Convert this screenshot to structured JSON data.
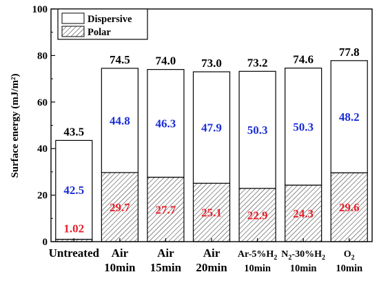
{
  "chart_data": {
    "type": "bar",
    "stacked": true,
    "ylabel": "Surface energy (mJ/m²)",
    "ylim": [
      0,
      100
    ],
    "yticks": [
      0,
      20,
      40,
      60,
      80,
      100
    ],
    "grid": false,
    "legend_placement": "top-left",
    "categories": [
      {
        "lines": [
          {
            "text": "Untreated"
          }
        ]
      },
      {
        "lines": [
          {
            "text": "Air"
          },
          {
            "text": "10min"
          }
        ]
      },
      {
        "lines": [
          {
            "text": "Air"
          },
          {
            "text": "15min"
          }
        ]
      },
      {
        "lines": [
          {
            "text": "Air"
          },
          {
            "text": "20min"
          }
        ]
      },
      {
        "lines": [
          {
            "text": "Ar-5%H",
            "sub": "2"
          },
          {
            "text": "10min"
          }
        ]
      },
      {
        "lines": [
          {
            "text": "N",
            "sub": "2",
            "after": "-30%H",
            "sub2": "2"
          },
          {
            "text": "10min"
          }
        ]
      },
      {
        "lines": [
          {
            "text": "O",
            "sub": "2"
          },
          {
            "text": "10min"
          }
        ]
      }
    ],
    "series": [
      {
        "name": "Polar",
        "values": [
          1.02,
          29.7,
          27.7,
          25.1,
          22.9,
          24.3,
          29.6
        ],
        "labels": [
          "1.02",
          "29.7",
          "27.7",
          "25.1",
          "22.9",
          "24.3",
          "29.6"
        ],
        "label_color": "#e8202a",
        "fill": "hatched"
      },
      {
        "name": "Dispersive",
        "values": [
          42.5,
          44.8,
          46.3,
          47.9,
          50.3,
          50.3,
          48.2
        ],
        "labels": [
          "42.5",
          "44.8",
          "46.3",
          "47.9",
          "50.3",
          "50.3",
          "48.2"
        ],
        "label_color": "#1a2ed6",
        "fill": "white"
      }
    ],
    "totals": [
      43.5,
      74.5,
      74.0,
      73.0,
      73.2,
      74.6,
      77.8
    ],
    "total_labels": [
      "43.5",
      "74.5",
      "74.0",
      "73.0",
      "73.2",
      "74.6",
      "77.8"
    ],
    "total_label_color": "#000000"
  }
}
